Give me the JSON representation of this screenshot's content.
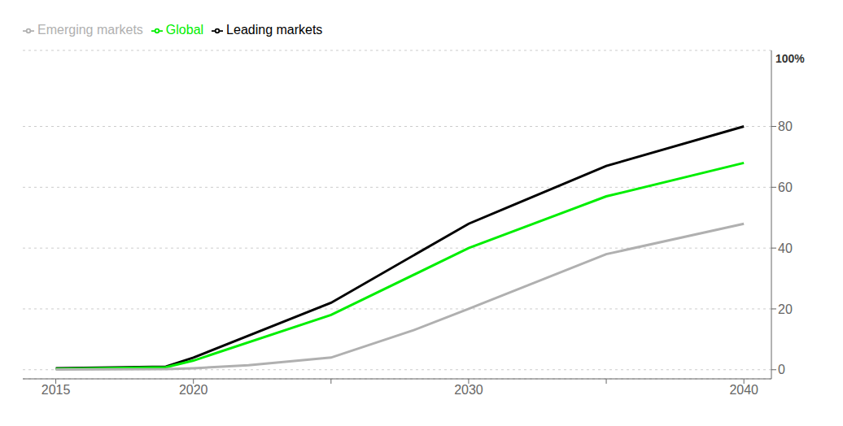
{
  "chart_data": {
    "type": "line",
    "series": [
      {
        "name": "Leading markets",
        "color": "#000000",
        "x": [
          2015,
          2019,
          2020,
          2025,
          2030,
          2035,
          2040
        ],
        "values": [
          0.5,
          1.0,
          4.0,
          22.0,
          48.0,
          67.0,
          80.0
        ]
      },
      {
        "name": "Global",
        "color": "#00ee00",
        "x": [
          2015,
          2019,
          2020,
          2025,
          2030,
          2035,
          2040
        ],
        "values": [
          0.3,
          0.8,
          3.0,
          18.0,
          40.0,
          57.0,
          68.0
        ]
      },
      {
        "name": "Emerging markets",
        "color": "#b0b0b0",
        "x": [
          2015,
          2019,
          2020,
          2022,
          2025,
          2028,
          2030,
          2035,
          2040
        ],
        "values": [
          0.1,
          0.2,
          0.5,
          1.5,
          4.0,
          13.0,
          20.0,
          38.0,
          48.0
        ]
      }
    ],
    "xlim": [
      2013.8,
      2041.0
    ],
    "xticks": [
      2015,
      2020,
      {
        "value": 2025,
        "label": null
      },
      2030,
      {
        "value": 2035,
        "label": null
      },
      2040
    ],
    "ylim": [
      -3,
      105
    ],
    "yticks": [
      0,
      20,
      40,
      60,
      80
    ],
    "grid": "y",
    "legend": "upper left",
    "annotations": [
      {
        "text": "100%",
        "x": 2041.0,
        "y": 105
      }
    ]
  }
}
